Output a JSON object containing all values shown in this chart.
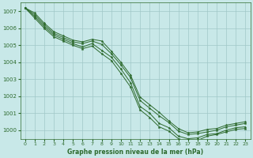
{
  "title": "Graphe pression niveau de la mer (hPa)",
  "background_color": "#c8e8e8",
  "grid_color": "#a0c8c8",
  "line_color": "#2d6a2d",
  "xlim": [
    -0.5,
    23.5
  ],
  "ylim": [
    999.5,
    1007.5
  ],
  "yticks": [
    1000,
    1001,
    1002,
    1003,
    1004,
    1005,
    1006,
    1007
  ],
  "xticks": [
    0,
    1,
    2,
    3,
    4,
    5,
    6,
    7,
    8,
    9,
    10,
    11,
    12,
    13,
    14,
    15,
    16,
    17,
    18,
    19,
    20,
    21,
    22,
    23
  ],
  "series": [
    [
      1007.2,
      1006.9,
      1006.3,
      1005.8,
      1005.55,
      1005.3,
      1005.2,
      1005.35,
      1005.25,
      1004.65,
      1004.0,
      1003.25,
      1001.95,
      1001.5,
      1001.05,
      1000.55,
      1000.1,
      999.85,
      999.9,
      1000.05,
      1000.1,
      1000.3,
      1000.4,
      1000.5
    ],
    [
      1007.2,
      1006.8,
      1006.2,
      1005.7,
      1005.45,
      1005.2,
      1005.1,
      1005.25,
      1005.05,
      1004.5,
      1003.85,
      1003.1,
      1001.75,
      1001.3,
      1000.85,
      1000.45,
      999.95,
      999.75,
      999.8,
      999.9,
      1000.0,
      1000.2,
      1000.3,
      1000.4
    ],
    [
      1007.2,
      1006.7,
      1006.1,
      1005.6,
      1005.35,
      1005.1,
      1004.9,
      1005.1,
      1004.7,
      1004.3,
      1003.6,
      1002.8,
      1001.4,
      1001.0,
      1000.4,
      1000.15,
      999.65,
      999.5,
      999.55,
      999.75,
      999.8,
      1000.0,
      1000.15,
      1000.2
    ],
    [
      1007.2,
      1006.6,
      1006.0,
      1005.5,
      1005.25,
      1005.0,
      1004.8,
      1004.95,
      1004.5,
      1004.1,
      1003.35,
      1002.55,
      1001.2,
      1000.75,
      1000.2,
      999.95,
      999.5,
      999.35,
      999.4,
      999.65,
      999.75,
      999.9,
      1000.05,
      1000.1
    ]
  ]
}
